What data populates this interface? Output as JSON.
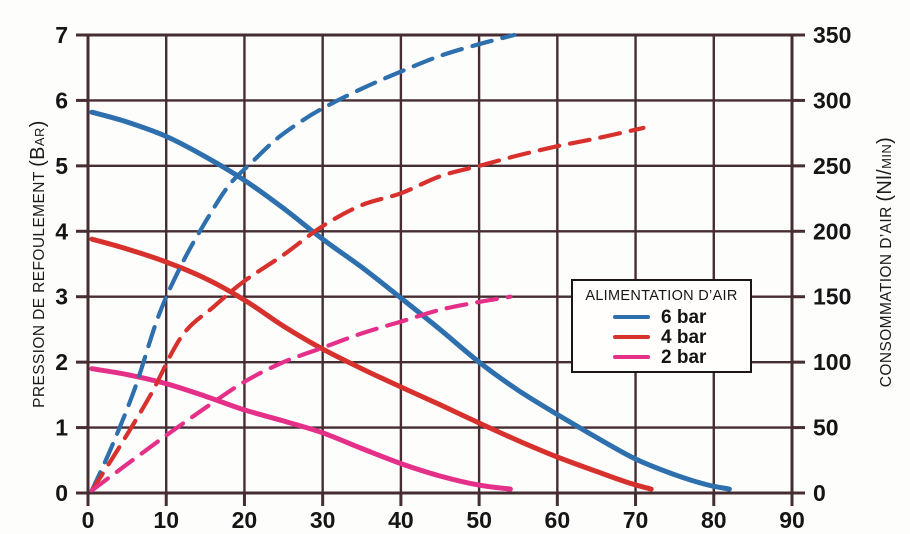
{
  "chart_data": {
    "type": "line",
    "title": "",
    "grid": true,
    "colors": {
      "grid": "#452d32",
      "text": "#151515",
      "background": "#ffffff",
      "blue_6bar": "#2e6fad",
      "red_4bar": "#d7312e",
      "pink_2bar": "#e43089"
    },
    "x_axis": {
      "label": "",
      "min": 0,
      "max": 90,
      "ticks": [
        0,
        10,
        20,
        30,
        40,
        50,
        60,
        70,
        80,
        90
      ]
    },
    "y_left": {
      "title_word": "PRESSION DE REFOULEMENT ",
      "title_unit_open": "(B",
      "title_unit_small": "AR",
      "title_unit_close": ")",
      "min": 0,
      "max": 7,
      "ticks": [
        0,
        1,
        2,
        3,
        4,
        5,
        6,
        7
      ]
    },
    "y_right": {
      "title_word": "CONSOMMATION D’AIR ",
      "title_unit_open": "(Nl/",
      "title_unit_small": "MIN",
      "title_unit_close": ")",
      "min": 0,
      "max": 350,
      "ticks": [
        0,
        50,
        100,
        150,
        200,
        250,
        300,
        350
      ]
    },
    "legend": {
      "title": "ALIMENTATION D’AIR",
      "entries": [
        {
          "label": "6 bar",
          "color": "#2e6fad"
        },
        {
          "label": "4 bar",
          "color": "#d7312e"
        },
        {
          "label": "2 bar",
          "color": "#e43089"
        }
      ]
    },
    "series": [
      {
        "id": "pression-6bar",
        "name": "6 bar",
        "quantity": "pression de refoulement (bar)",
        "axis": "left",
        "style": "solid",
        "color": "#2e6fad",
        "points": [
          [
            0.5,
            5.82
          ],
          [
            5,
            5.67
          ],
          [
            10,
            5.45
          ],
          [
            15,
            5.14
          ],
          [
            20,
            4.78
          ],
          [
            25,
            4.35
          ],
          [
            30,
            3.88
          ],
          [
            35,
            3.45
          ],
          [
            40,
            2.98
          ],
          [
            45,
            2.5
          ],
          [
            50,
            2.0
          ],
          [
            55,
            1.57
          ],
          [
            60,
            1.2
          ],
          [
            65,
            0.85
          ],
          [
            70,
            0.52
          ],
          [
            75,
            0.28
          ],
          [
            79,
            0.13
          ],
          [
            82,
            0.06
          ]
        ]
      },
      {
        "id": "pression-4bar",
        "name": "4 bar",
        "quantity": "pression de refoulement (bar)",
        "axis": "left",
        "style": "solid",
        "color": "#d7312e",
        "points": [
          [
            0.5,
            3.88
          ],
          [
            5,
            3.73
          ],
          [
            10,
            3.53
          ],
          [
            15,
            3.28
          ],
          [
            20,
            2.95
          ],
          [
            25,
            2.55
          ],
          [
            30,
            2.2
          ],
          [
            35,
            1.9
          ],
          [
            40,
            1.62
          ],
          [
            45,
            1.35
          ],
          [
            50,
            1.07
          ],
          [
            55,
            0.8
          ],
          [
            60,
            0.55
          ],
          [
            65,
            0.33
          ],
          [
            69,
            0.16
          ],
          [
            72,
            0.06
          ]
        ]
      },
      {
        "id": "pression-2bar",
        "name": "2 bar",
        "quantity": "pression de refoulement (bar)",
        "axis": "left",
        "style": "solid",
        "color": "#e43089",
        "points": [
          [
            0.5,
            1.9
          ],
          [
            5,
            1.81
          ],
          [
            10,
            1.67
          ],
          [
            15,
            1.48
          ],
          [
            20,
            1.27
          ],
          [
            25,
            1.1
          ],
          [
            30,
            0.92
          ],
          [
            35,
            0.68
          ],
          [
            40,
            0.45
          ],
          [
            45,
            0.26
          ],
          [
            50,
            0.12
          ],
          [
            54,
            0.06
          ]
        ]
      },
      {
        "id": "consommation-6bar",
        "name": "6 bar",
        "quantity": "consommation d'air (Nl/min)",
        "axis": "right",
        "style": "dashed",
        "color": "#2e6fad",
        "points": [
          [
            0.5,
            2
          ],
          [
            3,
            35
          ],
          [
            6,
            80
          ],
          [
            9,
            135
          ],
          [
            12,
            175
          ],
          [
            15,
            207
          ],
          [
            18,
            235
          ],
          [
            21,
            253
          ],
          [
            24,
            270
          ],
          [
            27,
            283
          ],
          [
            30,
            294
          ],
          [
            35,
            309
          ],
          [
            40,
            322
          ],
          [
            45,
            334
          ],
          [
            50,
            343
          ],
          [
            54.5,
            350
          ]
        ]
      },
      {
        "id": "consommation-4bar",
        "name": "4 bar",
        "quantity": "consommation d'air (Nl/min)",
        "axis": "right",
        "style": "dashed",
        "color": "#d7312e",
        "points": [
          [
            0.5,
            2
          ],
          [
            4,
            35
          ],
          [
            8,
            75
          ],
          [
            12,
            120
          ],
          [
            16,
            142
          ],
          [
            20,
            162
          ],
          [
            25,
            182
          ],
          [
            30,
            204
          ],
          [
            35,
            220
          ],
          [
            40,
            229
          ],
          [
            45,
            242
          ],
          [
            50,
            250
          ],
          [
            55,
            258
          ],
          [
            60,
            265
          ],
          [
            65,
            271
          ],
          [
            71,
            279
          ]
        ]
      },
      {
        "id": "consommation-2bar",
        "name": "2 bar",
        "quantity": "consommation d'air (Nl/min)",
        "axis": "right",
        "style": "dashed",
        "color": "#e43089",
        "points": [
          [
            0.5,
            2
          ],
          [
            5,
            22
          ],
          [
            10,
            44
          ],
          [
            15,
            65
          ],
          [
            20,
            85
          ],
          [
            25,
            100
          ],
          [
            30,
            111
          ],
          [
            35,
            122
          ],
          [
            40,
            131
          ],
          [
            45,
            140
          ],
          [
            50,
            146
          ],
          [
            54,
            150
          ]
        ]
      }
    ]
  }
}
